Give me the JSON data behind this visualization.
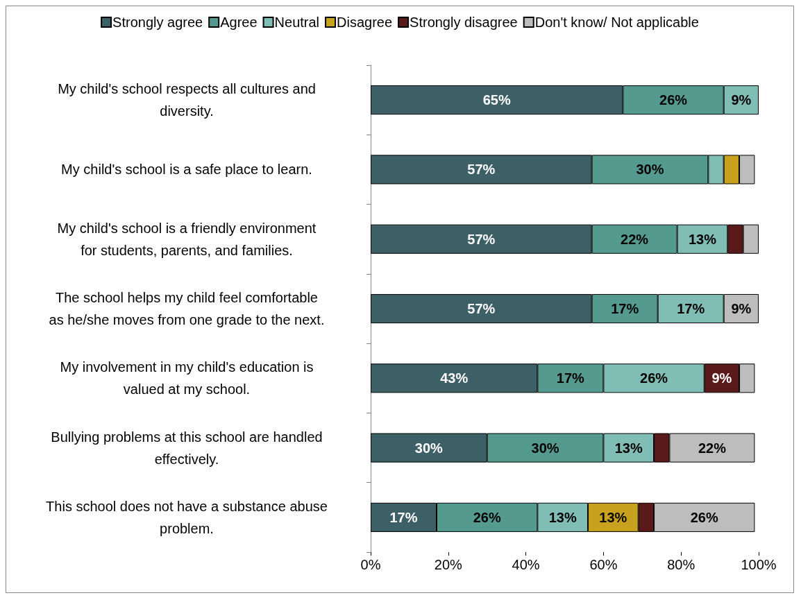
{
  "chart_data": {
    "type": "bar",
    "orientation": "horizontal",
    "stacked": true,
    "legend": "top",
    "grid": false,
    "categories": [
      "My child's school respects all cultures and diversity.",
      "My child's school is a safe place to learn.",
      "My child's school is a friendly environment for students, parents, and families.",
      "The school helps my child feel comfortable as he/she moves from one grade to the next.",
      "My involvement in my child's education is valued at my school.",
      "Bullying problems at this school are handled effectively.",
      "This school does not have a substance abuse problem."
    ],
    "xlim": [
      0,
      100
    ],
    "xticks": [
      {
        "value": 0,
        "label": "0%"
      },
      {
        "value": 20,
        "label": "20%"
      },
      {
        "value": 40,
        "label": "40%"
      },
      {
        "value": 60,
        "label": "60%"
      },
      {
        "value": 80,
        "label": "80%"
      },
      {
        "value": 100,
        "label": "100%"
      }
    ],
    "series": [
      {
        "name": "Strongly agree",
        "color": "#3d5f66",
        "values": [
          65,
          57,
          57,
          57,
          43,
          30,
          17
        ],
        "value_labels": [
          "65%",
          "57%",
          "57%",
          "57%",
          "43%",
          "30%",
          "17%"
        ]
      },
      {
        "name": "Agree",
        "color": "#559a8e",
        "values": [
          26,
          30,
          22,
          17,
          17,
          30,
          26
        ],
        "value_labels": [
          "26%",
          "30%",
          "22%",
          "17%",
          "17%",
          "30%",
          "26%"
        ]
      },
      {
        "name": "Neutral",
        "color": "#80bdb4",
        "values": [
          9,
          4,
          13,
          17,
          26,
          13,
          13
        ],
        "value_labels": [
          "9%",
          null,
          "13%",
          "17%",
          "26%",
          "13%",
          "13%"
        ]
      },
      {
        "name": "Disagree",
        "color": "#c8a21e",
        "values": [
          null,
          4,
          null,
          null,
          null,
          null,
          13
        ],
        "value_labels": [
          null,
          null,
          null,
          null,
          null,
          null,
          "13%"
        ]
      },
      {
        "name": "Strongly disagree",
        "color": "#5a1a1a",
        "values": [
          null,
          null,
          4,
          null,
          9,
          4,
          4
        ],
        "value_labels": [
          null,
          null,
          null,
          null,
          "9%",
          null,
          null
        ]
      },
      {
        "name": "Don't know/ Not applicable",
        "color": "#bdbdbd",
        "values": [
          null,
          4,
          4,
          9,
          4,
          22,
          26
        ],
        "value_labels": [
          null,
          null,
          null,
          "9%",
          null,
          "22%",
          "26%"
        ]
      }
    ]
  }
}
